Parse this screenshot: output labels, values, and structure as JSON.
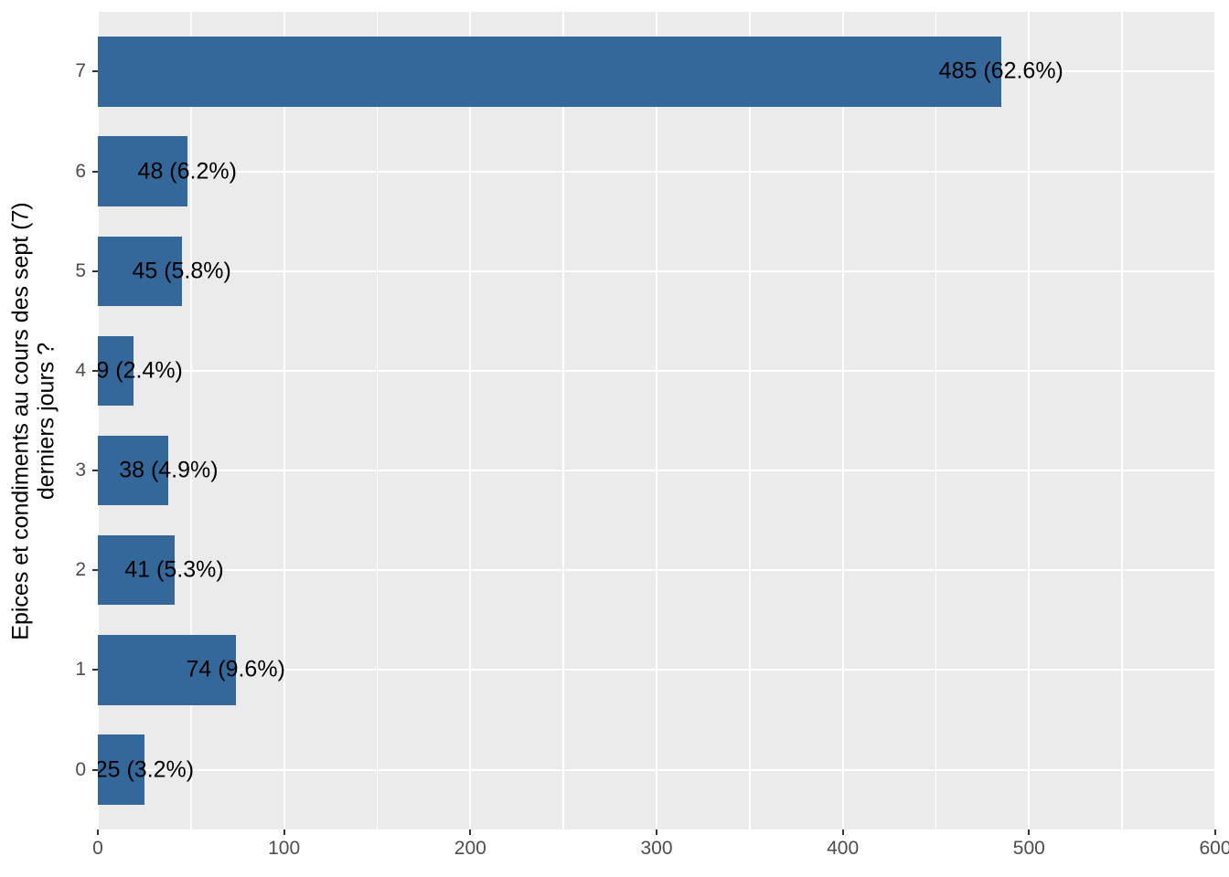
{
  "chart_data": {
    "type": "bar",
    "orientation": "horizontal",
    "title": "",
    "xlabel": "",
    "ylabel_lines": [
      "Epices et condiments au cours des sept (7)",
      "derniers jours ?"
    ],
    "categories": [
      "7",
      "6",
      "5",
      "4",
      "3",
      "2",
      "1",
      "0"
    ],
    "values": [
      485,
      48,
      45,
      19,
      38,
      41,
      74,
      25
    ],
    "bar_labels": [
      "485 (62.6%)",
      "48 (6.2%)",
      "45 (5.8%)",
      "19 (2.4%)",
      "38 (4.9%)",
      "41 (5.3%)",
      "74 (9.6%)",
      "25 (3.2%)"
    ],
    "xlim": [
      0,
      600
    ],
    "x_major_ticks": [
      "0",
      "100",
      "200",
      "300",
      "400",
      "500",
      "600"
    ],
    "x_major_tick_values": [
      0,
      100,
      200,
      300,
      400,
      500,
      600
    ],
    "x_minor_tick_values": [
      50,
      150,
      250,
      350,
      450,
      550
    ],
    "grid": "major-and-minor-vertical, major-horizontal",
    "legend_position": "none",
    "colors": {
      "bar": "#34679A",
      "panel_bg": "#EBEBEB",
      "grid": "#FFFFFF",
      "tick_text": "#4D4D4D",
      "tick_mark": "#333333",
      "bar_label_text": "#000000",
      "background": "#FFFFFF"
    }
  }
}
